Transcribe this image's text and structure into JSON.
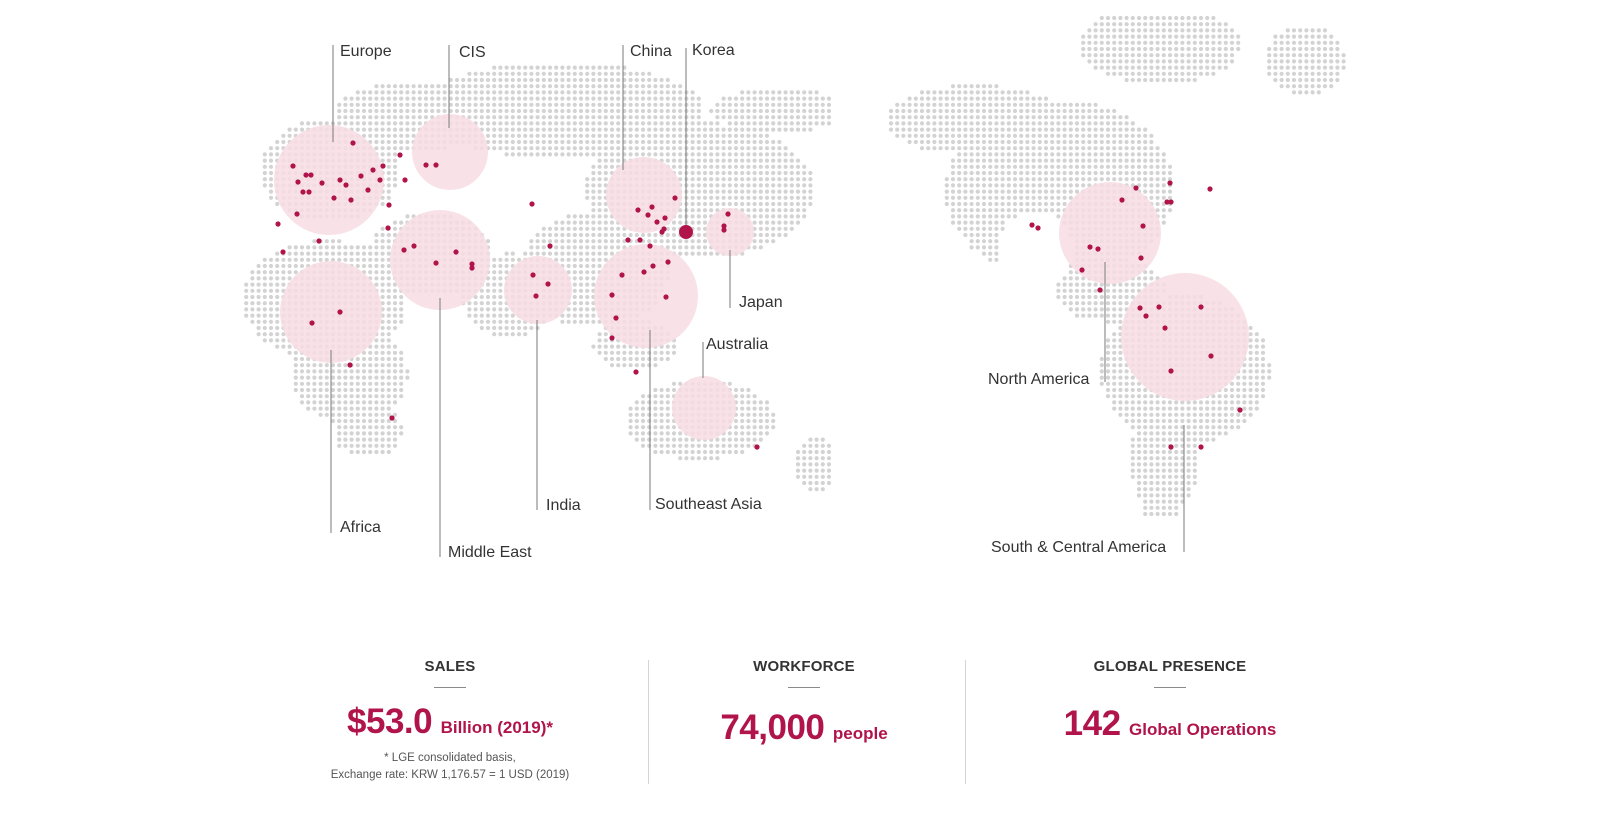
{
  "colors": {
    "accent": "#b0144a",
    "region_fill": "#f7dde3",
    "land_dot": "#d3d3d3",
    "leader_line": "#7a7a7a"
  },
  "regions": [
    {
      "id": "europe",
      "label": "Europe"
    },
    {
      "id": "cis",
      "label": "CIS"
    },
    {
      "id": "china",
      "label": "China"
    },
    {
      "id": "korea",
      "label": "Korea"
    },
    {
      "id": "japan",
      "label": "Japan"
    },
    {
      "id": "australia",
      "label": "Australia"
    },
    {
      "id": "north-america",
      "label": "North America"
    },
    {
      "id": "africa",
      "label": "Africa"
    },
    {
      "id": "middle-east",
      "label": "Middle East"
    },
    {
      "id": "india",
      "label": "India"
    },
    {
      "id": "southeast-asia",
      "label": "Southeast Asia"
    },
    {
      "id": "south-central-america",
      "label": "South & Central America"
    }
  ],
  "stats": {
    "sales": {
      "title": "SALES",
      "value": "$53.0",
      "unit": "Billion (2019)*",
      "note_line1": "* LGE consolidated basis,",
      "note_line2": "Exchange rate: KRW 1,176.57 = 1 USD (2019)"
    },
    "workforce": {
      "title": "WORKFORCE",
      "value": "74,000",
      "unit": "people"
    },
    "presence": {
      "title": "GLOBAL PRESENCE",
      "value": "142",
      "unit": "Global Operations"
    }
  }
}
